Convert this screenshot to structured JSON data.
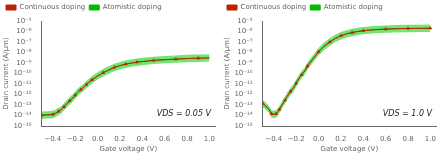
{
  "chart_data": [
    {
      "type": "line",
      "x_label": "Gate voltage (V)",
      "y_label": "Drain current (A/μm)",
      "annotation": "VDS = 0.05 V",
      "log": "y",
      "grid": false,
      "legend": "upper left",
      "xlim": [
        -0.5,
        1.05
      ],
      "ylim": [
        1e-15,
        1e-05
      ],
      "xticks": [
        {
          "value": -0.4,
          "label": "−0.4"
        },
        {
          "value": -0.2,
          "label": "−0.2"
        },
        {
          "value": 0.0,
          "label": "0.0"
        },
        0.2,
        0.4,
        0.6,
        0.8,
        {
          "value": 1.0,
          "label": "1.0"
        }
      ],
      "yticks": [
        {
          "value": 1e-15,
          "label": "10⁻¹⁵"
        },
        {
          "value": 1e-14,
          "label": "10⁻¹⁴"
        },
        {
          "value": 1e-13,
          "label": "10⁻¹³"
        },
        {
          "value": 1e-12,
          "label": "10⁻¹²"
        },
        {
          "value": 1e-11,
          "label": "10⁻¹¹"
        },
        {
          "value": 1e-10,
          "label": "10⁻¹⁰"
        },
        {
          "value": 1e-09,
          "label": "10⁻⁹"
        },
        {
          "value": 1e-08,
          "label": "10⁻⁸"
        },
        {
          "value": 1e-07,
          "label": "10⁻⁷"
        },
        {
          "value": 1e-06,
          "label": "10⁻⁶"
        },
        {
          "value": 1e-05,
          "label": "10⁻⁵"
        }
      ],
      "x": [
        -0.5,
        -0.45,
        -0.4,
        -0.38,
        -0.35,
        -0.32,
        -0.3,
        -0.28,
        -0.25,
        -0.22,
        -0.2,
        -0.18,
        -0.15,
        -0.12,
        -0.1,
        -0.08,
        -0.05,
        0.0,
        0.05,
        0.1,
        0.15,
        0.2,
        0.25,
        0.3,
        0.35,
        0.4,
        0.5,
        0.6,
        0.7,
        0.8,
        0.9,
        1.0
      ],
      "band": {
        "color": "#00cc00",
        "lower": [
          4.91352e-15,
          5.3602e-15,
          5.80689e-15,
          7.14694e-15,
          1.11671e-14,
          1.78673e-14,
          3.12679e-14,
          5.3602e-14,
          1.11671e-13,
          2.23342e-13,
          4.02015e-13,
          7.14694e-13,
          1.34005e-12,
          2.45676e-12,
          4.02015e-12,
          6.25357e-12,
          1.11671e-11,
          2.6801e-11,
          5.3602e-11,
          9.82704e-11,
          1.6974e-10,
          2.59077e-10,
          3.48413e-10,
          4.46684e-10,
          5.3602e-10,
          6.25357e-10,
          8.0403e-10,
          9.38036e-10,
          1.07204e-09,
          1.20605e-09,
          1.29538e-09,
          1.38472e-09
        ],
        "upper": [
          2.46259e-14,
          2.68647e-14,
          2.91034e-14,
          3.58195e-14,
          5.5968e-14,
          8.95488e-14,
          1.5671e-13,
          2.68647e-13,
          5.5968e-13,
          1.11936e-12,
          2.01485e-12,
          3.58195e-12,
          6.71616e-12,
          1.2313e-11,
          2.01485e-11,
          3.13421e-11,
          5.5968e-11,
          1.34323e-10,
          2.68647e-10,
          4.92519e-10,
          8.50714e-10,
          1.29846e-09,
          1.7462e-09,
          2.23872e-09,
          2.68647e-09,
          3.13421e-09,
          4.0297e-09,
          4.70131e-09,
          5.37293e-09,
          6.04455e-09,
          6.49229e-09,
          6.94004e-09
        ]
      },
      "series": [
        {
          "name": "Atomistic doping",
          "color": "#00bb00",
          "values": [
            1.1e-14,
            1.2e-14,
            1.3e-14,
            1.6e-14,
            2.5e-14,
            4e-14,
            7e-14,
            1.2e-13,
            2.5e-13,
            5e-13,
            9e-13,
            1.6e-12,
            3e-12,
            5.5e-12,
            9e-12,
            1.4e-11,
            2.5e-11,
            6e-11,
            1.2e-10,
            2.2e-10,
            3.8e-10,
            5.8e-10,
            7.8e-10,
            1e-09,
            1.2e-09,
            1.4e-09,
            1.8e-09,
            2.1e-09,
            2.4e-09,
            2.7e-09,
            2.9e-09,
            3.1e-09
          ]
        },
        {
          "name": "Continuous doping",
          "color": "#bb2200",
          "marker": "triangle",
          "values": [
            1.1e-14,
            1.2e-14,
            1.3e-14,
            1.6e-14,
            2.5e-14,
            4e-14,
            7e-14,
            1.2e-13,
            2.5e-13,
            5e-13,
            9e-13,
            1.6e-12,
            3e-12,
            5.5e-12,
            9e-12,
            1.4e-11,
            2.5e-11,
            6e-11,
            1.2e-10,
            2.2e-10,
            3.8e-10,
            5.8e-10,
            7.8e-10,
            1e-09,
            1.2e-09,
            1.4e-09,
            1.8e-09,
            2.1e-09,
            2.4e-09,
            2.7e-09,
            2.9e-09,
            3.1e-09
          ]
        }
      ]
    },
    {
      "type": "line",
      "x_label": "Gate voltage (V)",
      "y_label": "Drain current (A/μm)",
      "annotation": "VDS = 1.0 V",
      "log": "y",
      "grid": false,
      "legend": "upper left",
      "xlim": [
        -0.5,
        1.05
      ],
      "ylim": [
        1e-15,
        1e-05
      ],
      "xticks": [
        {
          "value": -0.4,
          "label": "−0.4"
        },
        {
          "value": -0.2,
          "label": "−0.2"
        },
        {
          "value": 0.0,
          "label": "0.0"
        },
        0.2,
        0.4,
        0.6,
        0.8,
        {
          "value": 1.0,
          "label": "1.0"
        }
      ],
      "yticks": [
        {
          "value": 1e-15,
          "label": "10⁻¹⁵"
        },
        {
          "value": 1e-14,
          "label": "10⁻¹⁴"
        },
        {
          "value": 1e-13,
          "label": "10⁻¹³"
        },
        {
          "value": 1e-12,
          "label": "10⁻¹²"
        },
        {
          "value": 1e-11,
          "label": "10⁻¹¹"
        },
        {
          "value": 1e-10,
          "label": "10⁻¹⁰"
        },
        {
          "value": 1e-09,
          "label": "10⁻⁹"
        },
        {
          "value": 1e-08,
          "label": "10⁻⁸"
        },
        {
          "value": 1e-07,
          "label": "10⁻⁷"
        },
        {
          "value": 1e-06,
          "label": "10⁻⁶"
        },
        {
          "value": 1e-05,
          "label": "10⁻⁵"
        }
      ],
      "x": [
        -0.5,
        -0.45,
        -0.42,
        -0.4,
        -0.38,
        -0.36,
        -0.35,
        -0.33,
        -0.3,
        -0.28,
        -0.25,
        -0.22,
        -0.2,
        -0.18,
        -0.15,
        -0.12,
        -0.1,
        -0.05,
        0.0,
        0.05,
        0.1,
        0.15,
        0.2,
        0.25,
        0.3,
        0.35,
        0.4,
        0.5,
        0.6,
        0.7,
        0.8,
        0.9,
        1.0
      ],
      "band": {
        "color": "#00cc00",
        "lower": [
          6.70025e-14,
          2.23342e-14,
          6.70025e-15,
          5.80689e-15,
          6.70025e-15,
          1.11671e-14,
          1.78673e-14,
          4.02015e-14,
          1.34005e-13,
          3.12679e-13,
          8.93367e-13,
          2.23342e-12,
          5.3602e-12,
          1.34005e-11,
          3.57347e-11,
          8.93367e-11,
          2.23342e-10,
          1.11671e-09,
          5.3602e-09,
          1.78673e-08,
          4.46684e-08,
          9.82704e-08,
          1.78673e-07,
          2.6801e-07,
          3.57347e-07,
          4.46684e-07,
          5.3602e-07,
          6.70025e-07,
          7.59362e-07,
          8.26365e-07,
          8.71033e-07,
          8.93367e-07,
          9.15701e-07
        ],
        "upper": [
          3.35808e-13,
          1.11936e-13,
          3.35808e-14,
          2.91034e-14,
          3.35808e-14,
          5.5968e-14,
          8.95488e-14,
          2.01485e-13,
          6.71616e-13,
          1.5671e-12,
          4.47744e-12,
          1.11936e-11,
          2.68647e-11,
          6.71616e-11,
          1.79098e-10,
          4.47744e-10,
          1.11936e-09,
          5.5968e-09,
          2.68647e-08,
          8.95488e-08,
          2.23872e-07,
          4.92519e-07,
          8.95488e-07,
          1.34323e-06,
          1.79098e-06,
          2.23872e-06,
          2.68647e-06,
          3.35808e-06,
          3.80583e-06,
          4.14163e-06,
          4.36551e-06,
          4.47744e-06,
          4.58938e-06
        ]
      },
      "series": [
        {
          "name": "Atomistic doping",
          "color": "#00bb00",
          "values": [
            1.5e-13,
            5e-14,
            1.5e-14,
            1.3e-14,
            1.5e-14,
            2.5e-14,
            4e-14,
            9e-14,
            3e-13,
            7e-13,
            2e-12,
            5e-12,
            1.2e-11,
            3e-11,
            8e-11,
            2e-10,
            5e-10,
            2.5e-09,
            1.2e-08,
            4e-08,
            1e-07,
            2.2e-07,
            4e-07,
            6e-07,
            8e-07,
            1e-06,
            1.2e-06,
            1.5e-06,
            1.7e-06,
            1.85e-06,
            1.95e-06,
            2e-06,
            2.05e-06
          ]
        },
        {
          "name": "Continuous doping",
          "color": "#bb2200",
          "marker": "triangle",
          "values": [
            1.5e-13,
            5e-14,
            1.5e-14,
            1.3e-14,
            1.5e-14,
            2.5e-14,
            4e-14,
            9e-14,
            3e-13,
            7e-13,
            2e-12,
            5e-12,
            1.2e-11,
            3e-11,
            8e-11,
            2e-10,
            5e-10,
            2.5e-09,
            1.2e-08,
            4e-08,
            1e-07,
            2.2e-07,
            4e-07,
            6e-07,
            8e-07,
            1e-06,
            1.2e-06,
            1.5e-06,
            1.7e-06,
            1.85e-06,
            1.95e-06,
            2e-06,
            2.05e-06
          ]
        }
      ]
    }
  ]
}
